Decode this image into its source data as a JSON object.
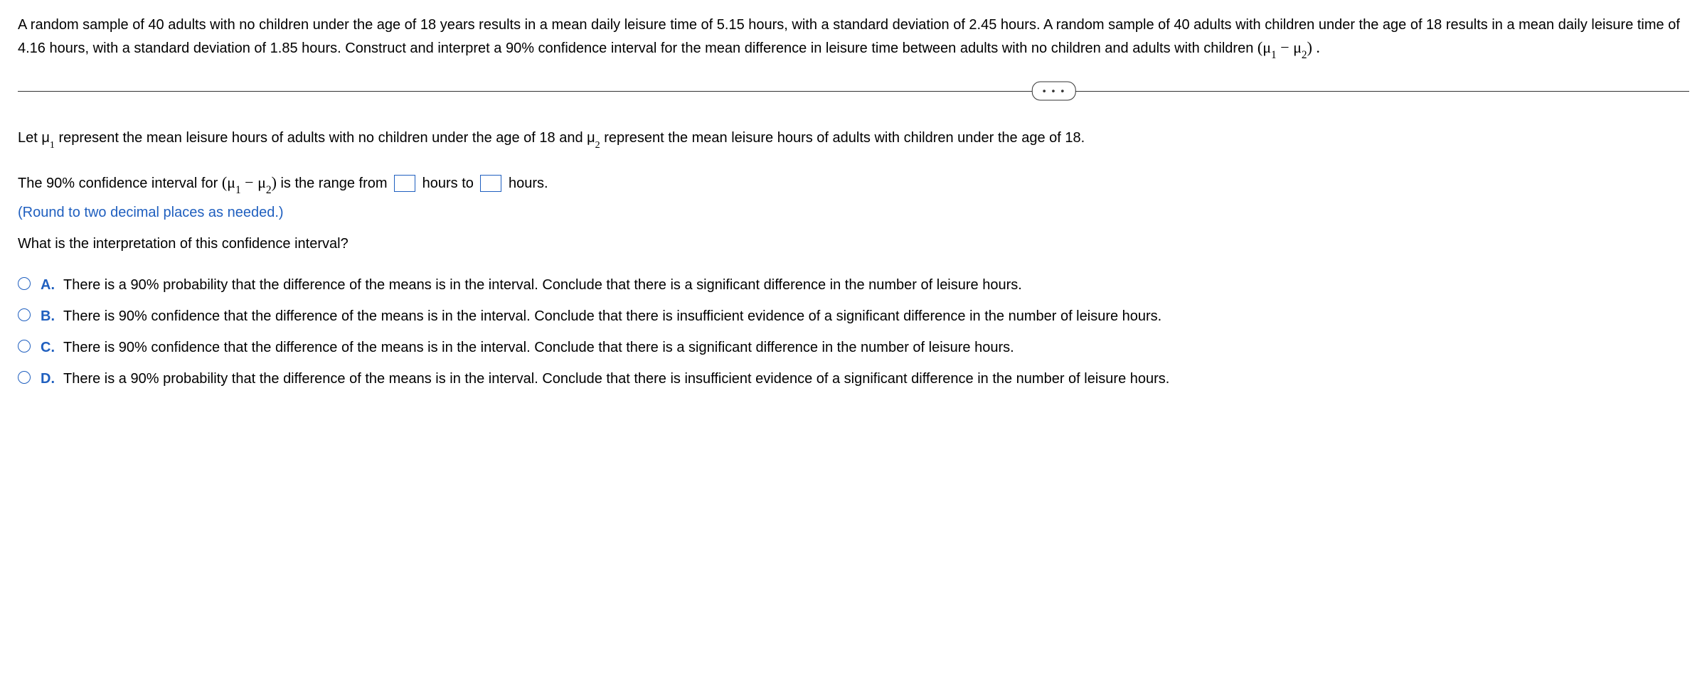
{
  "problem": {
    "text_parts": {
      "part1": "A random sample of 40 adults with no children under the age of 18 years results in a mean daily leisure time of 5.15 hours, with a standard deviation of 2.45 hours. A random sample of 40 adults with children under the age of 18 results in a mean daily leisure time of 4.16 hours, with a standard deviation of 1.85 hours. Construct and interpret a 90% confidence interval for the mean difference in leisure time between adults with no children and adults with children ",
      "expr_open": "(μ",
      "sub1": "1",
      "minus": " − μ",
      "sub2": "2",
      "expr_close": ") ."
    }
  },
  "divider": {
    "dots": "• • •"
  },
  "definition": {
    "part1": "Let μ",
    "sub1": "1",
    "part2": " represent the mean leisure hours of adults with no children under the age of 18 and μ",
    "sub2": "2",
    "part3": " represent the mean leisure hours of adults with children under the age of 18."
  },
  "ci": {
    "part1": "The 90% confidence interval for ",
    "expr_open": "(μ",
    "sub1": "1",
    "minus": " − μ",
    "sub2": "2",
    "expr_close": ")",
    "part2": " is the range from ",
    "part3": " hours to ",
    "part4": " hours."
  },
  "round_note": "(Round to two decimal places as needed.)",
  "interpretation_question": "What is the interpretation of this confidence interval?",
  "choices": [
    {
      "letter": "A.",
      "text": "There is a 90% probability that the difference of the means is in the interval. Conclude that there is a significant difference in the number of leisure hours."
    },
    {
      "letter": "B.",
      "text": "There is 90% confidence that the difference of the means is in the interval. Conclude that there is insufficient evidence of a significant difference in the number of leisure hours."
    },
    {
      "letter": "C.",
      "text": "There is 90% confidence that the difference of the means is in the interval. Conclude that there is a significant difference in the number of leisure hours."
    },
    {
      "letter": "D.",
      "text": "There is a 90% probability that the difference of the means is in the interval. Conclude that there is insufficient evidence of a significant difference in the number of leisure hours."
    }
  ]
}
